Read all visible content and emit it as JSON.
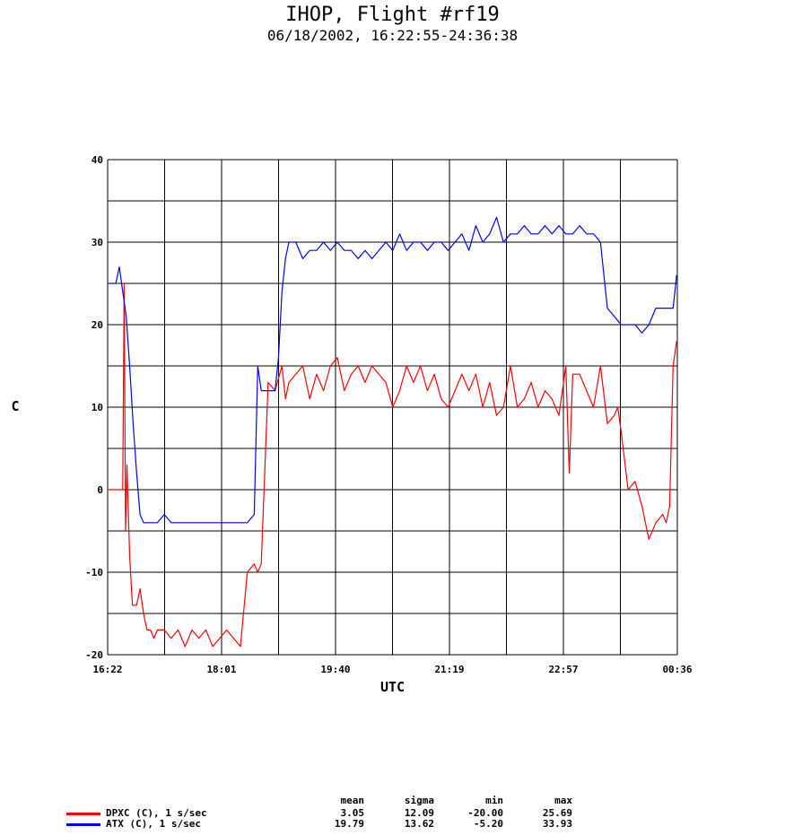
{
  "title": "IHOP, Flight #rf19",
  "subtitle": "06/18/2002, 16:22:55-24:36:38",
  "chart_data": {
    "type": "line",
    "xlabel": "UTC",
    "ylabel": "C",
    "ylim": [
      -20,
      40
    ],
    "yticks": [
      "40",
      "30",
      "20",
      "10",
      "0",
      "-10",
      "-20"
    ],
    "xticks": [
      "16:22",
      "18:01",
      "19:40",
      "21:19",
      "22:57",
      "00:36"
    ],
    "grid": true,
    "x_unit": "hours UTC",
    "xlim": [
      16.382,
      24.611
    ],
    "series": [
      {
        "name": "DPXC (C), 1 s/sec",
        "color": "#ff0000",
        "x": [
          16.38,
          16.6,
          16.62,
          16.64,
          16.66,
          16.7,
          16.74,
          16.8,
          16.85,
          16.9,
          16.95,
          17.0,
          17.05,
          17.1,
          17.2,
          17.3,
          17.4,
          17.5,
          17.6,
          17.7,
          17.8,
          17.9,
          18.0,
          18.1,
          18.2,
          18.3,
          18.4,
          18.5,
          18.55,
          18.6,
          18.7,
          18.8,
          18.9,
          18.95,
          19.0,
          19.1,
          19.2,
          19.3,
          19.4,
          19.5,
          19.6,
          19.7,
          19.8,
          19.9,
          20.0,
          20.1,
          20.2,
          20.3,
          20.4,
          20.5,
          20.6,
          20.7,
          20.8,
          20.9,
          21.0,
          21.1,
          21.2,
          21.3,
          21.4,
          21.5,
          21.6,
          21.7,
          21.8,
          21.9,
          22.0,
          22.1,
          22.2,
          22.3,
          22.4,
          22.5,
          22.6,
          22.7,
          22.8,
          22.9,
          23.0,
          23.05,
          23.1,
          23.2,
          23.3,
          23.4,
          23.5,
          23.6,
          23.7,
          23.75,
          23.8,
          23.9,
          24.0,
          24.1,
          24.2,
          24.3,
          24.4,
          24.45,
          24.5,
          24.55,
          24.6
        ],
        "y": [
          0,
          0,
          25,
          -5,
          3,
          -8,
          -14,
          -14,
          -12,
          -15,
          -17,
          -17,
          -18,
          -17,
          -17,
          -18,
          -17,
          -19,
          -17,
          -18,
          -17,
          -19,
          -18,
          -17,
          -18,
          -19,
          -10,
          -9,
          -10,
          -9,
          13,
          12,
          15,
          11,
          13,
          14,
          15,
          11,
          14,
          12,
          15,
          16,
          12,
          14,
          15,
          13,
          15,
          14,
          13,
          10,
          12,
          15,
          13,
          15,
          12,
          14,
          11,
          10,
          12,
          14,
          12,
          14,
          10,
          13,
          9,
          10,
          15,
          10,
          11,
          13,
          10,
          12,
          11,
          9,
          15,
          2,
          14,
          14,
          12,
          10,
          15,
          8,
          9,
          10,
          7,
          0,
          1,
          -2,
          -6,
          -4,
          -3,
          -4,
          -2,
          15,
          18
        ]
      },
      {
        "name": "ATX (C), 1 s/sec",
        "color": "#0000ff",
        "x": [
          16.38,
          16.5,
          16.55,
          16.6,
          16.65,
          16.7,
          16.75,
          16.8,
          16.85,
          16.9,
          16.95,
          17.0,
          17.1,
          17.2,
          17.3,
          17.4,
          17.5,
          17.6,
          17.7,
          17.8,
          17.9,
          18.0,
          18.1,
          18.2,
          18.3,
          18.4,
          18.5,
          18.55,
          18.6,
          18.7,
          18.8,
          18.85,
          18.9,
          18.95,
          19.0,
          19.1,
          19.2,
          19.3,
          19.4,
          19.5,
          19.6,
          19.7,
          19.8,
          19.9,
          20.0,
          20.1,
          20.2,
          20.3,
          20.4,
          20.5,
          20.6,
          20.7,
          20.8,
          20.9,
          21.0,
          21.1,
          21.2,
          21.3,
          21.4,
          21.5,
          21.6,
          21.7,
          21.8,
          21.9,
          22.0,
          22.1,
          22.2,
          22.3,
          22.4,
          22.5,
          22.6,
          22.7,
          22.8,
          22.9,
          23.0,
          23.1,
          23.2,
          23.3,
          23.4,
          23.5,
          23.6,
          23.7,
          23.8,
          23.9,
          24.0,
          24.1,
          24.2,
          24.3,
          24.4,
          24.5,
          24.55,
          24.6
        ],
        "y": [
          25,
          25,
          27,
          24,
          21,
          15,
          8,
          2,
          -3,
          -4,
          -4,
          -4,
          -4,
          -3,
          -4,
          -4,
          -4,
          -4,
          -4,
          -4,
          -4,
          -4,
          -4,
          -4,
          -4,
          -4,
          -3,
          15,
          12,
          12,
          12,
          16,
          24,
          28,
          30,
          30,
          28,
          29,
          29,
          30,
          29,
          30,
          29,
          29,
          28,
          29,
          28,
          29,
          30,
          29,
          31,
          29,
          30,
          30,
          29,
          30,
          30,
          29,
          30,
          31,
          29,
          32,
          30,
          31,
          33,
          30,
          31,
          31,
          32,
          31,
          31,
          32,
          31,
          32,
          31,
          31,
          32,
          31,
          31,
          30,
          22,
          21,
          20,
          20,
          20,
          19,
          20,
          22,
          22,
          22,
          22,
          26
        ]
      }
    ]
  },
  "stats": {
    "headers": [
      "mean",
      "sigma",
      "min",
      "max"
    ],
    "rows": [
      {
        "label": "DPXC (C), 1 s/sec",
        "color": "#ff0000",
        "values": [
          "3.05",
          "12.09",
          "-20.00",
          "25.69"
        ]
      },
      {
        "label": "ATX (C), 1 s/sec",
        "color": "#0000ff",
        "values": [
          "19.79",
          "13.62",
          "-5.20",
          "33.93"
        ]
      }
    ]
  }
}
